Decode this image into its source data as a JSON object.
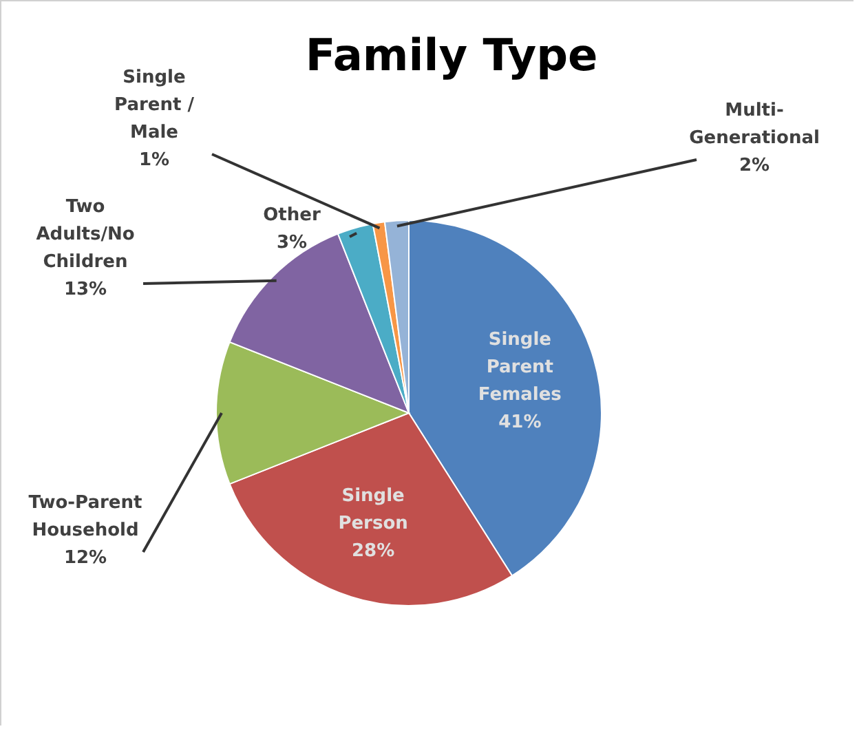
{
  "chart_data": {
    "type": "pie",
    "title": "Family Type",
    "categories": [
      "Single Parent Females",
      "Single Person",
      "Two-Parent Household",
      "Two Adults/No Children",
      "Other",
      "Single Parent / Male",
      "Multi-Generational"
    ],
    "values": [
      41,
      28,
      12,
      13,
      3,
      1,
      2
    ],
    "colors": [
      "#4f81bd",
      "#c0504d",
      "#9bbb59",
      "#8064a2",
      "#4bacc6",
      "#f79646",
      "#95b3d7"
    ],
    "value_labels": [
      "41%",
      "28%",
      "12%",
      "13%",
      "3%",
      "1%",
      "2%"
    ]
  }
}
